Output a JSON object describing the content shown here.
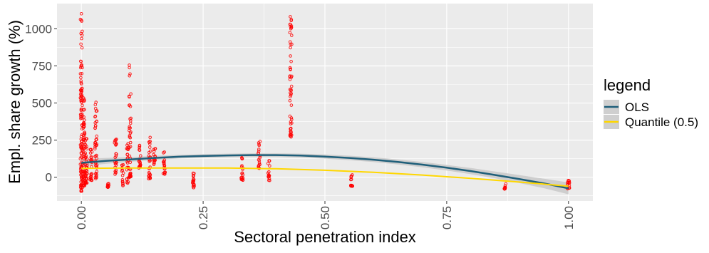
{
  "chart_data": {
    "type": "scatter",
    "title": "",
    "xlabel": "Sectoral penetration index",
    "ylabel": "Empl. share growth (%)",
    "xlim": [
      -0.05,
      1.05
    ],
    "ylim": [
      -160,
      1170
    ],
    "x_ticks": [
      {
        "value": 0.0,
        "label": "0.00"
      },
      {
        "value": 0.25,
        "label": "0.25"
      },
      {
        "value": 0.5,
        "label": "0.50"
      },
      {
        "value": 0.75,
        "label": "0.75"
      },
      {
        "value": 1.0,
        "label": "1.00"
      }
    ],
    "y_ticks": [
      {
        "value": 0,
        "label": "0"
      },
      {
        "value": 250,
        "label": "250"
      },
      {
        "value": 500,
        "label": "500"
      },
      {
        "value": 750,
        "label": "750"
      },
      {
        "value": 1000,
        "label": "1000"
      }
    ],
    "grid": true,
    "point_color": "#ff0000",
    "point_clusters": [
      {
        "x": 0.0,
        "ymin": -95,
        "ymax": 1110,
        "n": 110
      },
      {
        "x": 0.005,
        "ymin": -60,
        "ymax": 540,
        "n": 60
      },
      {
        "x": 0.01,
        "ymin": -40,
        "ymax": 300,
        "n": 40
      },
      {
        "x": 0.02,
        "ymin": -30,
        "ymax": 200,
        "n": 25
      },
      {
        "x": 0.03,
        "ymin": -10,
        "ymax": 540,
        "n": 45
      },
      {
        "x": 0.055,
        "ymin": -70,
        "ymax": -40,
        "n": 10
      },
      {
        "x": 0.07,
        "ymin": 20,
        "ymax": 260,
        "n": 25
      },
      {
        "x": 0.085,
        "ymin": -60,
        "ymax": 100,
        "n": 15
      },
      {
        "x": 0.095,
        "ymin": -40,
        "ymax": 240,
        "n": 25
      },
      {
        "x": 0.1,
        "ymin": 0,
        "ymax": 900,
        "n": 45
      },
      {
        "x": 0.12,
        "ymin": 60,
        "ymax": 220,
        "n": 20
      },
      {
        "x": 0.14,
        "ymin": -10,
        "ymax": 270,
        "n": 30
      },
      {
        "x": 0.15,
        "ymin": 50,
        "ymax": 200,
        "n": 15
      },
      {
        "x": 0.17,
        "ymin": 20,
        "ymax": 180,
        "n": 20
      },
      {
        "x": 0.23,
        "ymin": -70,
        "ymax": 40,
        "n": 20
      },
      {
        "x": 0.33,
        "ymin": -20,
        "ymax": 150,
        "n": 20
      },
      {
        "x": 0.365,
        "ymin": 60,
        "ymax": 250,
        "n": 20
      },
      {
        "x": 0.385,
        "ymin": -30,
        "ymax": 120,
        "n": 15
      },
      {
        "x": 0.43,
        "ymin": 270,
        "ymax": 1130,
        "n": 55
      },
      {
        "x": 0.555,
        "ymin": -60,
        "ymax": 30,
        "n": 15
      },
      {
        "x": 0.87,
        "ymin": -80,
        "ymax": -40,
        "n": 10
      },
      {
        "x": 1.0,
        "ymin": -80,
        "ymax": -20,
        "n": 15
      }
    ],
    "series": [
      {
        "name": "OLS",
        "color": "#1f5f7a",
        "x": [
          0,
          0.05,
          0.1,
          0.15,
          0.2,
          0.25,
          0.3,
          0.35,
          0.4,
          0.45,
          0.5,
          0.55,
          0.6,
          0.65,
          0.7,
          0.75,
          0.8,
          0.85,
          0.9,
          0.95,
          1.0
        ],
        "y": [
          97,
          110,
          120,
          130,
          138,
          143,
          147,
          149,
          149,
          146,
          139,
          130,
          118,
          103,
          85,
          64,
          41,
          15,
          -13,
          -42,
          -75
        ],
        "ci_half": [
          25,
          20,
          16,
          14,
          12,
          12,
          12,
          12,
          12,
          13,
          14,
          15,
          16,
          17,
          18,
          19,
          21,
          23,
          27,
          32,
          40
        ]
      },
      {
        "name": "Quantile (0.5)",
        "color": "#ffd700",
        "x": [
          0,
          0.1,
          0.2,
          0.3,
          0.4,
          0.5,
          0.6,
          0.7,
          0.8,
          0.9,
          1.0
        ],
        "y": [
          60,
          62,
          62,
          62,
          57,
          47,
          33,
          15,
          -8,
          -33,
          -60
        ]
      }
    ],
    "legend": {
      "title": "legend",
      "position": "right"
    }
  }
}
